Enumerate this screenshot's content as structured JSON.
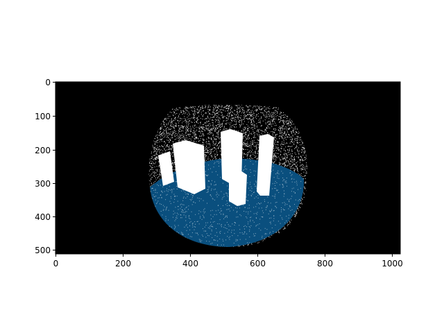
{
  "figure": {
    "background": "#ffffff",
    "image_background": "#000000",
    "particle_color": "#ffffff",
    "water_color": "#0a4f7e"
  },
  "axes": {
    "x_ticks": [
      "0",
      "200",
      "400",
      "600",
      "800",
      "1000"
    ],
    "y_ticks": [
      "0",
      "100",
      "200",
      "300",
      "400",
      "500"
    ]
  },
  "scene": {
    "objects": [
      "glass-bowl",
      "water",
      "box-obstacles"
    ]
  }
}
